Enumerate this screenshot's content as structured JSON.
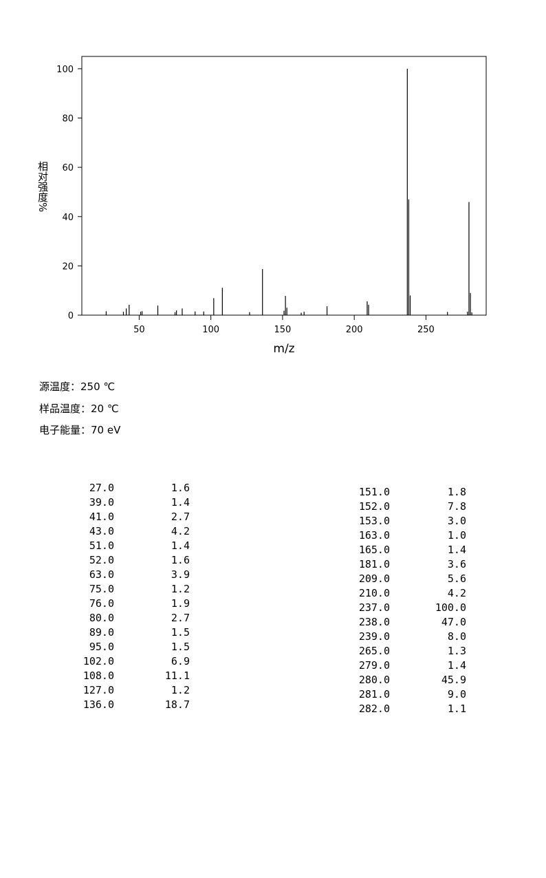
{
  "chart_data": {
    "type": "stem",
    "xlabel": "m/z",
    "ylabel": "相对强度%",
    "x": [
      27,
      39,
      41,
      43,
      51,
      52,
      63,
      75,
      76,
      80,
      89,
      95,
      102,
      108,
      127,
      136,
      151,
      152,
      153,
      163,
      165,
      181,
      209,
      210,
      237,
      238,
      239,
      265,
      279,
      280,
      281,
      282
    ],
    "values": [
      1.6,
      1.4,
      2.7,
      4.2,
      1.4,
      1.6,
      3.9,
      1.2,
      1.9,
      2.7,
      1.5,
      1.5,
      6.9,
      11.1,
      1.2,
      18.7,
      1.8,
      7.8,
      3.0,
      1.0,
      1.4,
      3.6,
      5.6,
      4.2,
      100.0,
      47.0,
      8.0,
      1.3,
      1.4,
      45.9,
      9.0,
      1.1
    ],
    "color": "#000000",
    "xlim": [
      10,
      292
    ],
    "xticks": [
      50,
      100,
      150,
      200,
      250
    ],
    "ylim": [
      0,
      105
    ],
    "yticks": [
      0,
      20,
      40,
      60,
      80,
      100
    ]
  },
  "info": [
    "源温度：250 ℃",
    "样品温度：20 ℃",
    "电子能量：70 eV"
  ],
  "table": {
    "left": [
      [
        "27.0",
        "1.6"
      ],
      [
        "39.0",
        "1.4"
      ],
      [
        "41.0",
        "2.7"
      ],
      [
        "43.0",
        "4.2"
      ],
      [
        "51.0",
        "1.4"
      ],
      [
        "52.0",
        "1.6"
      ],
      [
        "63.0",
        "3.9"
      ],
      [
        "75.0",
        "1.2"
      ],
      [
        "76.0",
        "1.9"
      ],
      [
        "80.0",
        "2.7"
      ],
      [
        "89.0",
        "1.5"
      ],
      [
        "95.0",
        "1.5"
      ],
      [
        "102.0",
        "6.9"
      ],
      [
        "108.0",
        "11.1"
      ],
      [
        "127.0",
        "1.2"
      ],
      [
        "136.0",
        "18.7"
      ]
    ],
    "right": [
      [
        "151.0",
        "1.8"
      ],
      [
        "152.0",
        "7.8"
      ],
      [
        "153.0",
        "3.0"
      ],
      [
        "163.0",
        "1.0"
      ],
      [
        "165.0",
        "1.4"
      ],
      [
        "181.0",
        "3.6"
      ],
      [
        "209.0",
        "5.6"
      ],
      [
        "210.0",
        "4.2"
      ],
      [
        "237.0",
        "100.0"
      ],
      [
        "238.0",
        "47.0"
      ],
      [
        "239.0",
        "8.0"
      ],
      [
        "265.0",
        "1.3"
      ],
      [
        "279.0",
        "1.4"
      ],
      [
        "280.0",
        "45.9"
      ],
      [
        "281.0",
        "9.0"
      ],
      [
        "282.0",
        "1.1"
      ]
    ]
  }
}
